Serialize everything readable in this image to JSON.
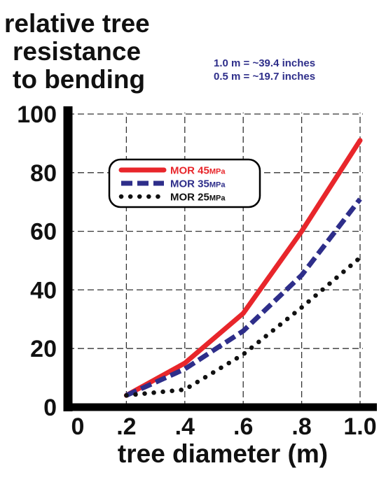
{
  "chart_data": {
    "type": "line",
    "ylabel_lines": [
      "relative tree",
      "resistance",
      "to bending"
    ],
    "xlabel": "tree diameter (m)",
    "notes": [
      "1.0 m = ~39.4 inches",
      "0.5 m = ~19.7 inches"
    ],
    "x": [
      0.2,
      0.4,
      0.6,
      0.8,
      1.0
    ],
    "xlim": [
      0,
      1.0
    ],
    "ylim": [
      0,
      100
    ],
    "x_tick_values": [
      0,
      0.2,
      0.4,
      0.6,
      0.8,
      1.0
    ],
    "x_tick_labels": [
      "0",
      ".2",
      ".4",
      ".6",
      ".8",
      "1.0"
    ],
    "y_tick_values": [
      0,
      20,
      40,
      60,
      80,
      100
    ],
    "y_tick_labels": [
      "0",
      "20",
      "40",
      "60",
      "80",
      "100"
    ],
    "grid": true,
    "legend_position": "top-left",
    "series": [
      {
        "name": "MOR 45",
        "unit": "MPa",
        "color": "#e8262b",
        "style": "solid",
        "values": [
          4,
          15,
          32,
          60,
          91
        ]
      },
      {
        "name": "MOR 35",
        "unit": "MPa",
        "color": "#2e2e8a",
        "style": "dashed",
        "values": [
          4,
          13,
          26,
          45,
          71
        ]
      },
      {
        "name": "MOR 25",
        "unit": "MPa",
        "color": "#111111",
        "style": "dotted",
        "values": [
          4,
          6,
          18,
          34,
          51
        ]
      }
    ]
  }
}
